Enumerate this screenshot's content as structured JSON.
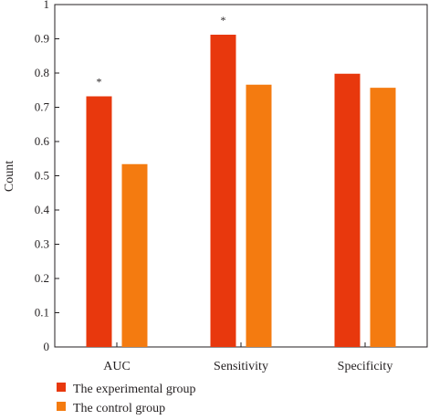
{
  "chart_data": {
    "type": "bar",
    "categories": [
      "AUC",
      "Sensitivity",
      "Specificity"
    ],
    "series": [
      {
        "name": "The experimental group",
        "color": "#e8380d",
        "values": [
          0.732,
          0.912,
          0.798
        ]
      },
      {
        "name": "The control group",
        "color": "#f47b10",
        "values": [
          0.534,
          0.766,
          0.757
        ]
      }
    ],
    "ylabel": "Count",
    "xlabel": "",
    "ylim": [
      0,
      1
    ],
    "yticks": [
      "0",
      "0.1",
      "0.2",
      "0.3",
      "0.4",
      "0.5",
      "0.6",
      "0.7",
      "0.8",
      "0.9",
      "1"
    ],
    "annotations": [
      {
        "category": "AUC",
        "series": 0,
        "text": "*"
      },
      {
        "category": "Sensitivity",
        "series": 0,
        "text": "*"
      }
    ],
    "legend_position": "bottom-left",
    "grid": false
  }
}
